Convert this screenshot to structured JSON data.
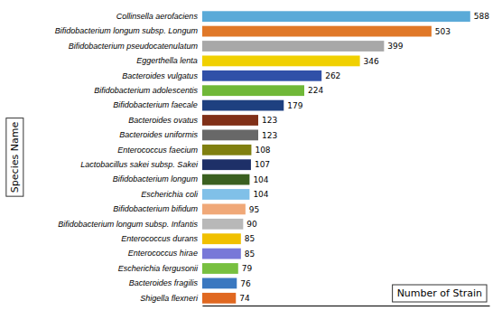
{
  "chart_data": {
    "type": "bar",
    "orientation": "horizontal",
    "categories": [
      "Shigella flexneri",
      "Bacteroides fragilis",
      "Escherichia fergusonii",
      "Enterococcus hirae",
      "Enterococcus durans",
      "Bifidobacterium longum subsp. Infantis",
      "Bifidobacterium bifidum",
      "Escherichia coli",
      "Bifidobacterium longum",
      "Lactobacillus sakei subsp. Sakei",
      "Enterococcus faecium",
      "Bacteroides uniformis",
      "Bacteroides ovatus",
      "Bifidobacterium faecale",
      "Bifidobacterium adolescentis",
      "Bacteroides vulgatus",
      "Eggerthella lenta",
      "Bifidobacterium pseudocatenulatum",
      "Bifidobacterium longum subsp. Longum",
      "Collinsella aerofaciens"
    ],
    "values": [
      74,
      76,
      79,
      85,
      85,
      90,
      95,
      104,
      104,
      107,
      108,
      123,
      123,
      179,
      224,
      262,
      346,
      399,
      503,
      588
    ],
    "colors": [
      "#E06820",
      "#3A78C0",
      "#78C040",
      "#7878D8",
      "#F0C000",
      "#B8B8B8",
      "#F0A878",
      "#80C0E8",
      "#3A6020",
      "#1E3068",
      "#808010",
      "#686868",
      "#803018",
      "#1E4080",
      "#70B838",
      "#3050A8",
      "#F0D000",
      "#A8A8A8",
      "#E07828",
      "#5AAAD8"
    ],
    "xlabel": "Number of Strain",
    "ylabel": "Species Name",
    "xlim": [
      0,
      630
    ],
    "tick_labels": "y",
    "data_labels": true
  }
}
